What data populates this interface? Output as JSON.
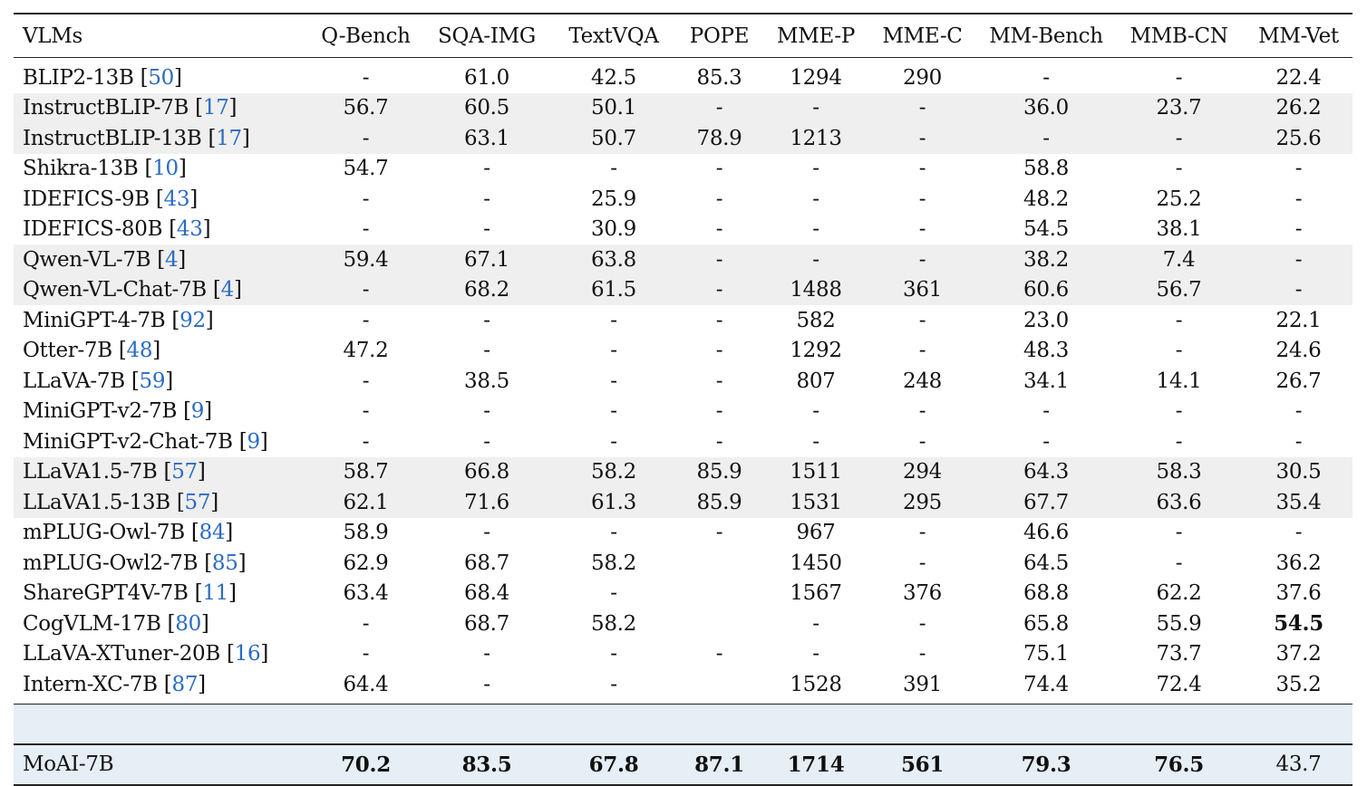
{
  "columns": [
    "VLMs",
    "Q-Bench",
    "SQA-IMG",
    "TextVQA",
    "POPE",
    "MME-P",
    "MME-C",
    "MM-Bench",
    "MMB-CN",
    "MM-Vet"
  ],
  "rows": [
    {
      "model": "BLIP2-13B",
      "cite": "50",
      "values": [
        "-",
        "61.0",
        "42.5",
        "85.3",
        "1294",
        "290",
        "-",
        "-",
        "22.4"
      ],
      "bold": [],
      "shaded": false
    },
    {
      "model": "InstructBLIP-7B",
      "cite": "17",
      "values": [
        "56.7",
        "60.5",
        "50.1",
        "-",
        "-",
        "-",
        "36.0",
        "23.7",
        "26.2"
      ],
      "bold": [],
      "shaded": true
    },
    {
      "model": "InstructBLIP-13B",
      "cite": "17",
      "values": [
        "-",
        "63.1",
        "50.7",
        "78.9",
        "1213",
        "-",
        "-",
        "-",
        "25.6"
      ],
      "bold": [],
      "shaded": true
    },
    {
      "model": "Shikra-13B",
      "cite": "10",
      "values": [
        "54.7",
        "-",
        "-",
        "-",
        "-",
        "-",
        "58.8",
        "-",
        "-"
      ],
      "bold": [],
      "shaded": false
    },
    {
      "model": "IDEFICS-9B",
      "cite": "43",
      "values": [
        "-",
        "-",
        "25.9",
        "-",
        "-",
        "-",
        "48.2",
        "25.2",
        "-"
      ],
      "bold": [],
      "shaded": false
    },
    {
      "model": "IDEFICS-80B",
      "cite": "43",
      "values": [
        "-",
        "-",
        "30.9",
        "-",
        "-",
        "-",
        "54.5",
        "38.1",
        "-"
      ],
      "bold": [],
      "shaded": false
    },
    {
      "model": "Qwen-VL-7B",
      "cite": "4",
      "values": [
        "59.4",
        "67.1",
        "63.8",
        "-",
        "-",
        "-",
        "38.2",
        "7.4",
        "-"
      ],
      "bold": [],
      "shaded": true
    },
    {
      "model": "Qwen-VL-Chat-7B",
      "cite": "4",
      "values": [
        "-",
        "68.2",
        "61.5",
        "-",
        "1488",
        "361",
        "60.6",
        "56.7",
        "-"
      ],
      "bold": [],
      "shaded": true
    },
    {
      "model": "MiniGPT-4-7B",
      "cite": "92",
      "values": [
        "-",
        "-",
        "-",
        "-",
        "582",
        "-",
        "23.0",
        "-",
        "22.1"
      ],
      "bold": [],
      "shaded": false
    },
    {
      "model": "Otter-7B",
      "cite": "48",
      "values": [
        "47.2",
        "-",
        "-",
        "-",
        "1292",
        "-",
        "48.3",
        "-",
        "24.6"
      ],
      "bold": [],
      "shaded": false
    },
    {
      "model": "LLaVA-7B",
      "cite": "59",
      "values": [
        "-",
        "38.5",
        "-",
        "-",
        "807",
        "248",
        "34.1",
        "14.1",
        "26.7"
      ],
      "bold": [],
      "shaded": false
    },
    {
      "model": "MiniGPT-v2-7B",
      "cite": "9",
      "values": [
        "-",
        "-",
        "-",
        "-",
        "-",
        "-",
        "-",
        "-",
        "-"
      ],
      "bold": [],
      "shaded": false
    },
    {
      "model": "MiniGPT-v2-Chat-7B",
      "cite": "9",
      "values": [
        "-",
        "-",
        "-",
        "-",
        "-",
        "-",
        "-",
        "-",
        "-"
      ],
      "bold": [],
      "shaded": false
    },
    {
      "model": "LLaVA1.5-7B",
      "cite": "57",
      "values": [
        "58.7",
        "66.8",
        "58.2",
        "85.9",
        "1511",
        "294",
        "64.3",
        "58.3",
        "30.5"
      ],
      "bold": [],
      "shaded": true
    },
    {
      "model": "LLaVA1.5-13B",
      "cite": "57",
      "values": [
        "62.1",
        "71.6",
        "61.3",
        "85.9",
        "1531",
        "295",
        "67.7",
        "63.6",
        "35.4"
      ],
      "bold": [],
      "shaded": true
    },
    {
      "model": "mPLUG-Owl-7B",
      "cite": "84",
      "values": [
        "58.9",
        "-",
        "-",
        "-",
        "967",
        "-",
        "46.6",
        "-",
        "-"
      ],
      "bold": [],
      "shaded": false
    },
    {
      "model": "mPLUG-Owl2-7B",
      "cite": "85",
      "values": [
        "62.9",
        "68.7",
        "58.2",
        "",
        "1450",
        "-",
        "64.5",
        "-",
        "36.2"
      ],
      "bold": [],
      "shaded": false
    },
    {
      "model": "ShareGPT4V-7B",
      "cite": "11",
      "values": [
        "63.4",
        "68.4",
        "-",
        "",
        "1567",
        "376",
        "68.8",
        "62.2",
        "37.6"
      ],
      "bold": [],
      "shaded": false
    },
    {
      "model": "CogVLM-17B",
      "cite": "80",
      "values": [
        "-",
        "68.7",
        "58.2",
        "",
        "-",
        "-",
        "65.8",
        "55.9",
        "54.5"
      ],
      "bold": [
        8
      ],
      "shaded": false
    },
    {
      "model": "LLaVA-XTuner-20B",
      "cite": "16",
      "values": [
        "-",
        "-",
        "-",
        "-",
        "-",
        "-",
        "75.1",
        "73.7",
        "37.2"
      ],
      "bold": [],
      "shaded": false
    },
    {
      "model": "Intern-XC-7B",
      "cite": "87",
      "values": [
        "64.4",
        "-",
        "-",
        "",
        "1528",
        "391",
        "74.4",
        "72.4",
        "35.2"
      ],
      "bold": [],
      "shaded": false
    }
  ],
  "ours": {
    "model": "MoAI-7B",
    "values": [
      "70.2",
      "83.5",
      "67.8",
      "87.1",
      "1714",
      "561",
      "79.3",
      "76.5",
      "43.7"
    ],
    "bold": [
      0,
      1,
      2,
      3,
      4,
      5,
      6,
      7
    ]
  }
}
